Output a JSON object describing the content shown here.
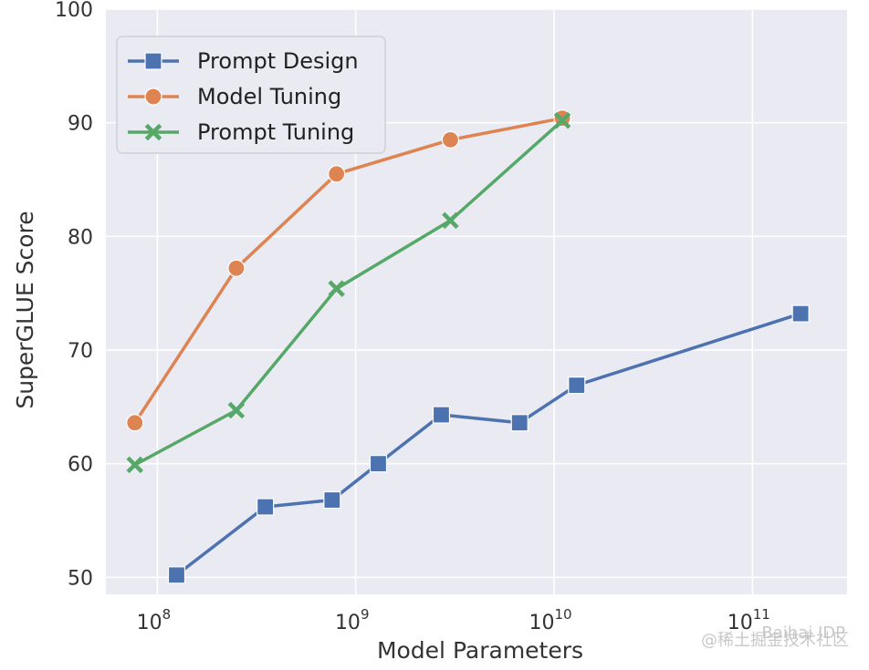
{
  "chart_data": {
    "type": "line",
    "xlabel": "Model Parameters",
    "ylabel": "SuperGLUE Score",
    "xscale": "log",
    "xlim": [
      55000000,
      300000000000
    ],
    "ylim": [
      48.5,
      100
    ],
    "grid": true,
    "legend_position": "top-left",
    "y_ticks": [
      50,
      60,
      70,
      80,
      90,
      100
    ],
    "x_ticks": [
      {
        "value": 100000000,
        "base": "10",
        "exp": "8"
      },
      {
        "value": 1000000000,
        "base": "10",
        "exp": "9"
      },
      {
        "value": 10000000000,
        "base": "10",
        "exp": "10"
      },
      {
        "value": 100000000000,
        "base": "10",
        "exp": "11"
      }
    ],
    "series": [
      {
        "name": "Prompt Design",
        "color": "#4c72b0",
        "marker": "square",
        "x": [
          125000000,
          350000000,
          760000000,
          1300000000,
          2700000000,
          6700000000,
          13000000000,
          175000000000
        ],
        "y": [
          50.2,
          56.2,
          56.8,
          60.0,
          64.3,
          63.6,
          66.9,
          73.2
        ]
      },
      {
        "name": "Model Tuning",
        "color": "#dd8452",
        "marker": "circle",
        "x": [
          77000000,
          250000000,
          800000000,
          3000000000,
          11000000000
        ],
        "y": [
          63.6,
          77.2,
          85.5,
          88.5,
          90.4
        ]
      },
      {
        "name": "Prompt Tuning",
        "color": "#55a868",
        "marker": "x",
        "x": [
          77000000,
          250000000,
          800000000,
          3000000000,
          11000000000
        ],
        "y": [
          59.9,
          64.7,
          75.4,
          81.4,
          90.2
        ]
      }
    ]
  },
  "watermark": "@稀土掘金技术社区",
  "watermark_overlay": "Baihai IDP"
}
